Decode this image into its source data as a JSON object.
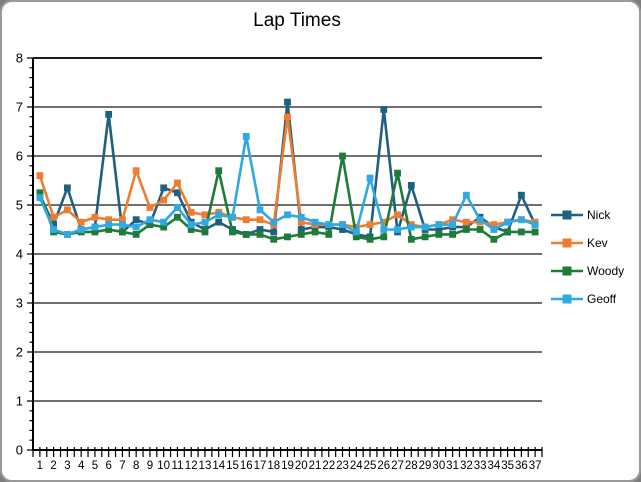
{
  "window": {
    "background_color": "#ffffff",
    "border_color": "#9a9a9a"
  },
  "chart_data": {
    "type": "line",
    "title": "Lap Times",
    "xlabel": "",
    "ylabel": "",
    "ylim": [
      0,
      8
    ],
    "yticks": [
      0,
      1,
      2,
      3,
      4,
      5,
      6,
      7,
      8
    ],
    "grid": true,
    "marker": "square",
    "legend_position": "right",
    "axis_color": "#000000",
    "grid_color": "#1a1a1a",
    "categories": [
      "1",
      "2",
      "3",
      "4",
      "5",
      "6",
      "7",
      "8",
      "9",
      "10",
      "11",
      "12",
      "13",
      "14",
      "15",
      "16",
      "17",
      "18",
      "19",
      "20",
      "21",
      "22",
      "23",
      "24",
      "25",
      "26",
      "27",
      "28",
      "29",
      "30",
      "31",
      "32",
      "33",
      "34",
      "35",
      "36",
      "37"
    ],
    "series": [
      {
        "name": "Nick",
        "color": "#1F6080",
        "values": [
          5.2,
          4.6,
          5.35,
          4.5,
          4.55,
          6.85,
          4.45,
          4.7,
          4.6,
          5.35,
          5.25,
          4.65,
          4.5,
          4.65,
          4.5,
          4.4,
          4.5,
          4.45,
          7.1,
          4.5,
          4.55,
          4.55,
          4.5,
          4.4,
          4.35,
          6.95,
          4.45,
          5.4,
          4.5,
          4.5,
          4.55,
          4.55,
          4.75,
          4.55,
          4.45,
          5.2,
          4.6
        ]
      },
      {
        "name": "Kev",
        "color": "#ED7D31",
        "values": [
          5.6,
          4.75,
          4.9,
          4.65,
          4.75,
          4.7,
          4.7,
          5.7,
          4.95,
          5.1,
          5.45,
          4.85,
          4.8,
          4.85,
          4.75,
          4.7,
          4.7,
          4.6,
          6.8,
          4.65,
          4.6,
          4.6,
          4.6,
          4.55,
          4.6,
          4.65,
          4.8,
          4.6,
          4.55,
          4.6,
          4.7,
          4.65,
          4.65,
          4.6,
          4.65,
          4.7,
          4.65
        ]
      },
      {
        "name": "Woody",
        "color": "#1F7B38",
        "values": [
          5.25,
          4.45,
          4.4,
          4.45,
          4.45,
          4.5,
          4.45,
          4.4,
          4.6,
          4.55,
          4.75,
          4.5,
          4.45,
          5.7,
          4.45,
          4.4,
          4.4,
          4.3,
          4.35,
          4.4,
          4.45,
          4.4,
          6.0,
          4.35,
          4.3,
          4.35,
          5.65,
          4.3,
          4.35,
          4.4,
          4.4,
          4.5,
          4.5,
          4.3,
          4.45,
          4.45,
          4.45
        ]
      },
      {
        "name": "Geoff",
        "color": "#2FA9DF",
        "values": [
          5.15,
          4.5,
          4.4,
          4.5,
          4.55,
          4.6,
          4.6,
          4.55,
          4.7,
          4.65,
          4.95,
          4.6,
          4.65,
          4.8,
          4.75,
          6.4,
          4.9,
          4.65,
          4.8,
          4.75,
          4.65,
          4.6,
          4.6,
          4.45,
          5.55,
          4.5,
          4.5,
          4.55,
          4.55,
          4.6,
          4.6,
          5.2,
          4.7,
          4.5,
          4.65,
          4.7,
          4.6
        ]
      }
    ]
  }
}
